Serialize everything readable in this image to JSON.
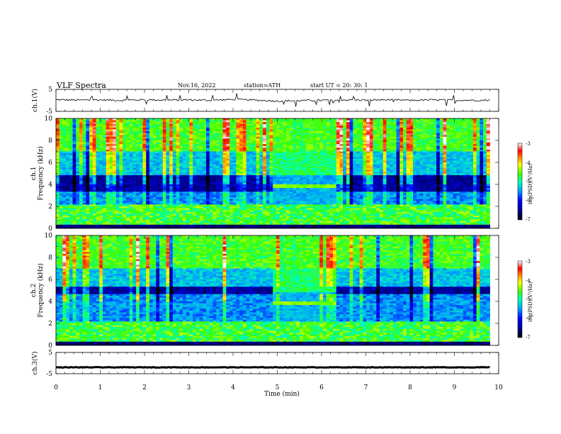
{
  "header": {
    "title": "VLF  Spectra",
    "date": "Nov.16, 2022",
    "station": "station=ATH",
    "start": "start  UT  =    20: 30: 1"
  },
  "chart_data": [
    {
      "type": "line",
      "name": "ch1-waveform",
      "ylabel": "ch.1(V)",
      "ylim": [
        -5,
        5
      ],
      "yticks": [
        "5",
        "-5"
      ],
      "xlim": [
        0,
        10
      ],
      "x": [
        0,
        0.5,
        1,
        1.5,
        2,
        2.5,
        3,
        3.5,
        4,
        4.5,
        5,
        5.5,
        6,
        6.5,
        7,
        7.5,
        8,
        8.5,
        9,
        9.5,
        9.8
      ],
      "values": [
        0.3,
        0.1,
        0.2,
        0.0,
        0.3,
        0.1,
        0.2,
        0.0,
        0.4,
        0.1,
        -0.3,
        -0.1,
        0.0,
        0.2,
        0.1,
        0.3,
        0.0,
        0.2,
        0.1,
        0.0,
        0.1
      ]
    },
    {
      "type": "heatmap",
      "name": "ch1-spectrogram",
      "ylabel": "ch.1\nFrequency (kHz)",
      "ylabel_lines": [
        "ch.1",
        "Frequency  (kHz)"
      ],
      "ylim": [
        0,
        10
      ],
      "yticks": [
        "0",
        "2",
        "4",
        "6",
        "8",
        "10"
      ],
      "xlim": [
        0,
        10
      ],
      "data_end_min": 9.8,
      "colorbar": {
        "label": "log(PSD)(V²/Hz)",
        "range": [
          -7,
          -3
        ],
        "ticks": [
          "-3",
          "-4",
          "-5",
          "-6",
          "-7"
        ]
      },
      "features": {
        "quiet_band_khz": [
          3.3,
          4.8
        ],
        "burst_interval_min": [
          4.9,
          6.3
        ],
        "burst_band_khz": [
          3.6,
          4.0
        ]
      }
    },
    {
      "type": "heatmap",
      "name": "ch2-spectrogram",
      "ylabel": "ch.2\nFrequency (kHz)",
      "ylabel_lines": [
        "ch.2",
        "Frequency  (kHz)"
      ],
      "ylim": [
        0,
        10
      ],
      "yticks": [
        "0",
        "2",
        "4",
        "6",
        "8",
        "10"
      ],
      "xlim": [
        0,
        10
      ],
      "data_end_min": 9.8,
      "colorbar": {
        "label": "log(PSD)(V²/Hz)",
        "range": [
          -7,
          -3
        ],
        "ticks": [
          "-3",
          "-4",
          "-5",
          "-6",
          "-7"
        ]
      },
      "features": {
        "quiet_band_khz": [
          4.6,
          5.4
        ],
        "burst_interval_min": [
          4.9,
          6.3
        ],
        "burst_band_khz": [
          3.6,
          4.0
        ]
      }
    },
    {
      "type": "line",
      "name": "ch3-waveform",
      "ylabel": "ch.3(V)",
      "ylim": [
        -5,
        5
      ],
      "yticks": [
        "5",
        "-5"
      ],
      "xlim": [
        0,
        10
      ],
      "x": [
        0,
        9.8
      ],
      "values": [
        -2.0,
        -2.0
      ],
      "xlabel": "Time  (min)",
      "xticks": [
        "0",
        "1",
        "2",
        "3",
        "4",
        "5",
        "6",
        "7",
        "8",
        "9",
        "10"
      ]
    }
  ]
}
